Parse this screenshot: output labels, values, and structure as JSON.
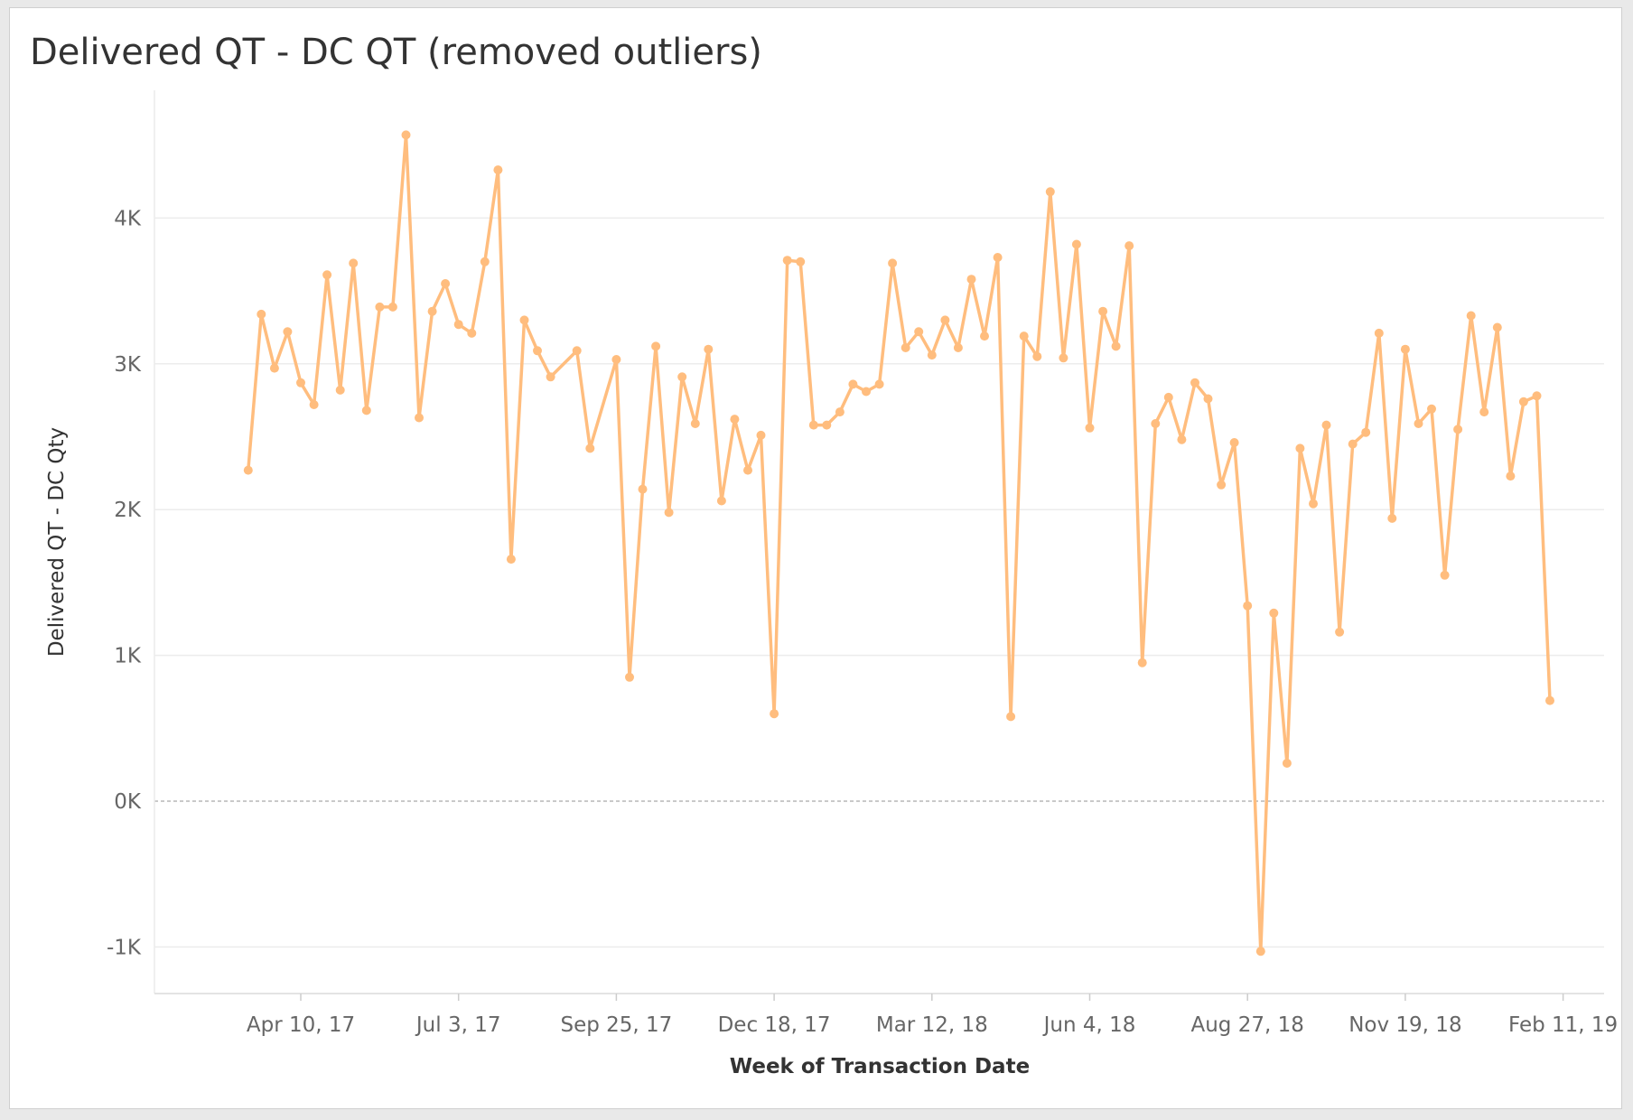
{
  "colors": {
    "line": "#FFBD7E",
    "grid": "#ececec",
    "zero_line": "#a9a9a9"
  },
  "chart_data": {
    "type": "line",
    "title": "Delivered QT - DC QT (removed outliers)",
    "xlabel": "Week of Transaction Date",
    "ylabel": "Delivered QT - DC Qty",
    "x_range": [
      "2017-02-13",
      "2019-02-25"
    ],
    "ylim": [
      -1300,
      4600
    ],
    "y_ticks": [
      -1000,
      0,
      1000,
      2000,
      3000,
      4000
    ],
    "y_tick_labels": [
      "-1K",
      "0K",
      "1K",
      "2K",
      "3K",
      "4K"
    ],
    "x_ticks": [
      "2017-04-10",
      "2017-07-03",
      "2017-09-25",
      "2017-12-18",
      "2018-03-12",
      "2018-06-04",
      "2018-08-27",
      "2018-11-19",
      "2019-02-11"
    ],
    "x_tick_labels": [
      "Apr 10, 17",
      "Jul 3, 17",
      "Sep 25, 17",
      "Dec 18, 17",
      "Mar 12, 18",
      "Jun 4, 18",
      "Aug 27, 18",
      "Nov 19, 18",
      "Feb 11, 19"
    ],
    "grid": true,
    "legend": "none",
    "series": [
      {
        "color": "#FFBD7E",
        "x": [
          "2017-03-13",
          "2017-03-20",
          "2017-03-27",
          "2017-04-03",
          "2017-04-10",
          "2017-04-17",
          "2017-04-24",
          "2017-05-01",
          "2017-05-08",
          "2017-05-15",
          "2017-05-22",
          "2017-05-29",
          "2017-06-05",
          "2017-06-12",
          "2017-06-19",
          "2017-06-26",
          "2017-07-03",
          "2017-07-10",
          "2017-07-17",
          "2017-07-24",
          "2017-07-31",
          "2017-08-07",
          "2017-08-14",
          "2017-08-21",
          "2017-09-04",
          "2017-09-11",
          "2017-09-25",
          "2017-10-02",
          "2017-10-09",
          "2017-10-16",
          "2017-10-23",
          "2017-10-30",
          "2017-11-06",
          "2017-11-13",
          "2017-11-20",
          "2017-11-27",
          "2017-12-04",
          "2017-12-11",
          "2017-12-18",
          "2017-12-25",
          "2018-01-01",
          "2018-01-08",
          "2018-01-15",
          "2018-01-22",
          "2018-01-29",
          "2018-02-05",
          "2018-02-12",
          "2018-02-19",
          "2018-02-26",
          "2018-03-05",
          "2018-03-12",
          "2018-03-19",
          "2018-03-26",
          "2018-04-02",
          "2018-04-09",
          "2018-04-16",
          "2018-04-23",
          "2018-04-30",
          "2018-05-07",
          "2018-05-14",
          "2018-05-21",
          "2018-05-28",
          "2018-06-04",
          "2018-06-11",
          "2018-06-18",
          "2018-06-25",
          "2018-07-02",
          "2018-07-09",
          "2018-07-16",
          "2018-07-23",
          "2018-07-30",
          "2018-08-06",
          "2018-08-13",
          "2018-08-20",
          "2018-08-27",
          "2018-09-03",
          "2018-09-10",
          "2018-09-17",
          "2018-09-24",
          "2018-10-01",
          "2018-10-08",
          "2018-10-15",
          "2018-10-22",
          "2018-10-29",
          "2018-11-05",
          "2018-11-12",
          "2018-11-19",
          "2018-11-26",
          "2018-12-03",
          "2018-12-10",
          "2018-12-17",
          "2018-12-24",
          "2018-12-31",
          "2019-01-07",
          "2019-01-14",
          "2019-01-21",
          "2019-01-28",
          "2019-02-04"
        ],
        "y": [
          2270,
          3340,
          2970,
          3220,
          2870,
          2720,
          3610,
          2820,
          3690,
          2680,
          3390,
          3390,
          4570,
          2630,
          3360,
          3550,
          3270,
          3210,
          3700,
          4330,
          1660,
          3300,
          3090,
          2910,
          3090,
          2420,
          3030,
          850,
          2140,
          3120,
          1980,
          2910,
          2590,
          3100,
          2060,
          2620,
          2270,
          2510,
          600,
          3710,
          3700,
          2580,
          2580,
          2670,
          2860,
          2810,
          2860,
          3690,
          3110,
          3220,
          3060,
          3300,
          3110,
          3580,
          3190,
          3730,
          580,
          3190,
          3050,
          4180,
          3040,
          3820,
          2560,
          3360,
          3120,
          3810,
          950,
          2590,
          2770,
          2480,
          2870,
          2760,
          2170,
          2460,
          1340,
          -1030,
          1290,
          260,
          2420,
          2040,
          2580,
          1160,
          2450,
          2530,
          3210,
          1940,
          3100,
          2590,
          2690,
          1550,
          2550,
          3330,
          2670,
          3250,
          2230,
          2740,
          2780,
          690
        ]
      }
    ]
  }
}
